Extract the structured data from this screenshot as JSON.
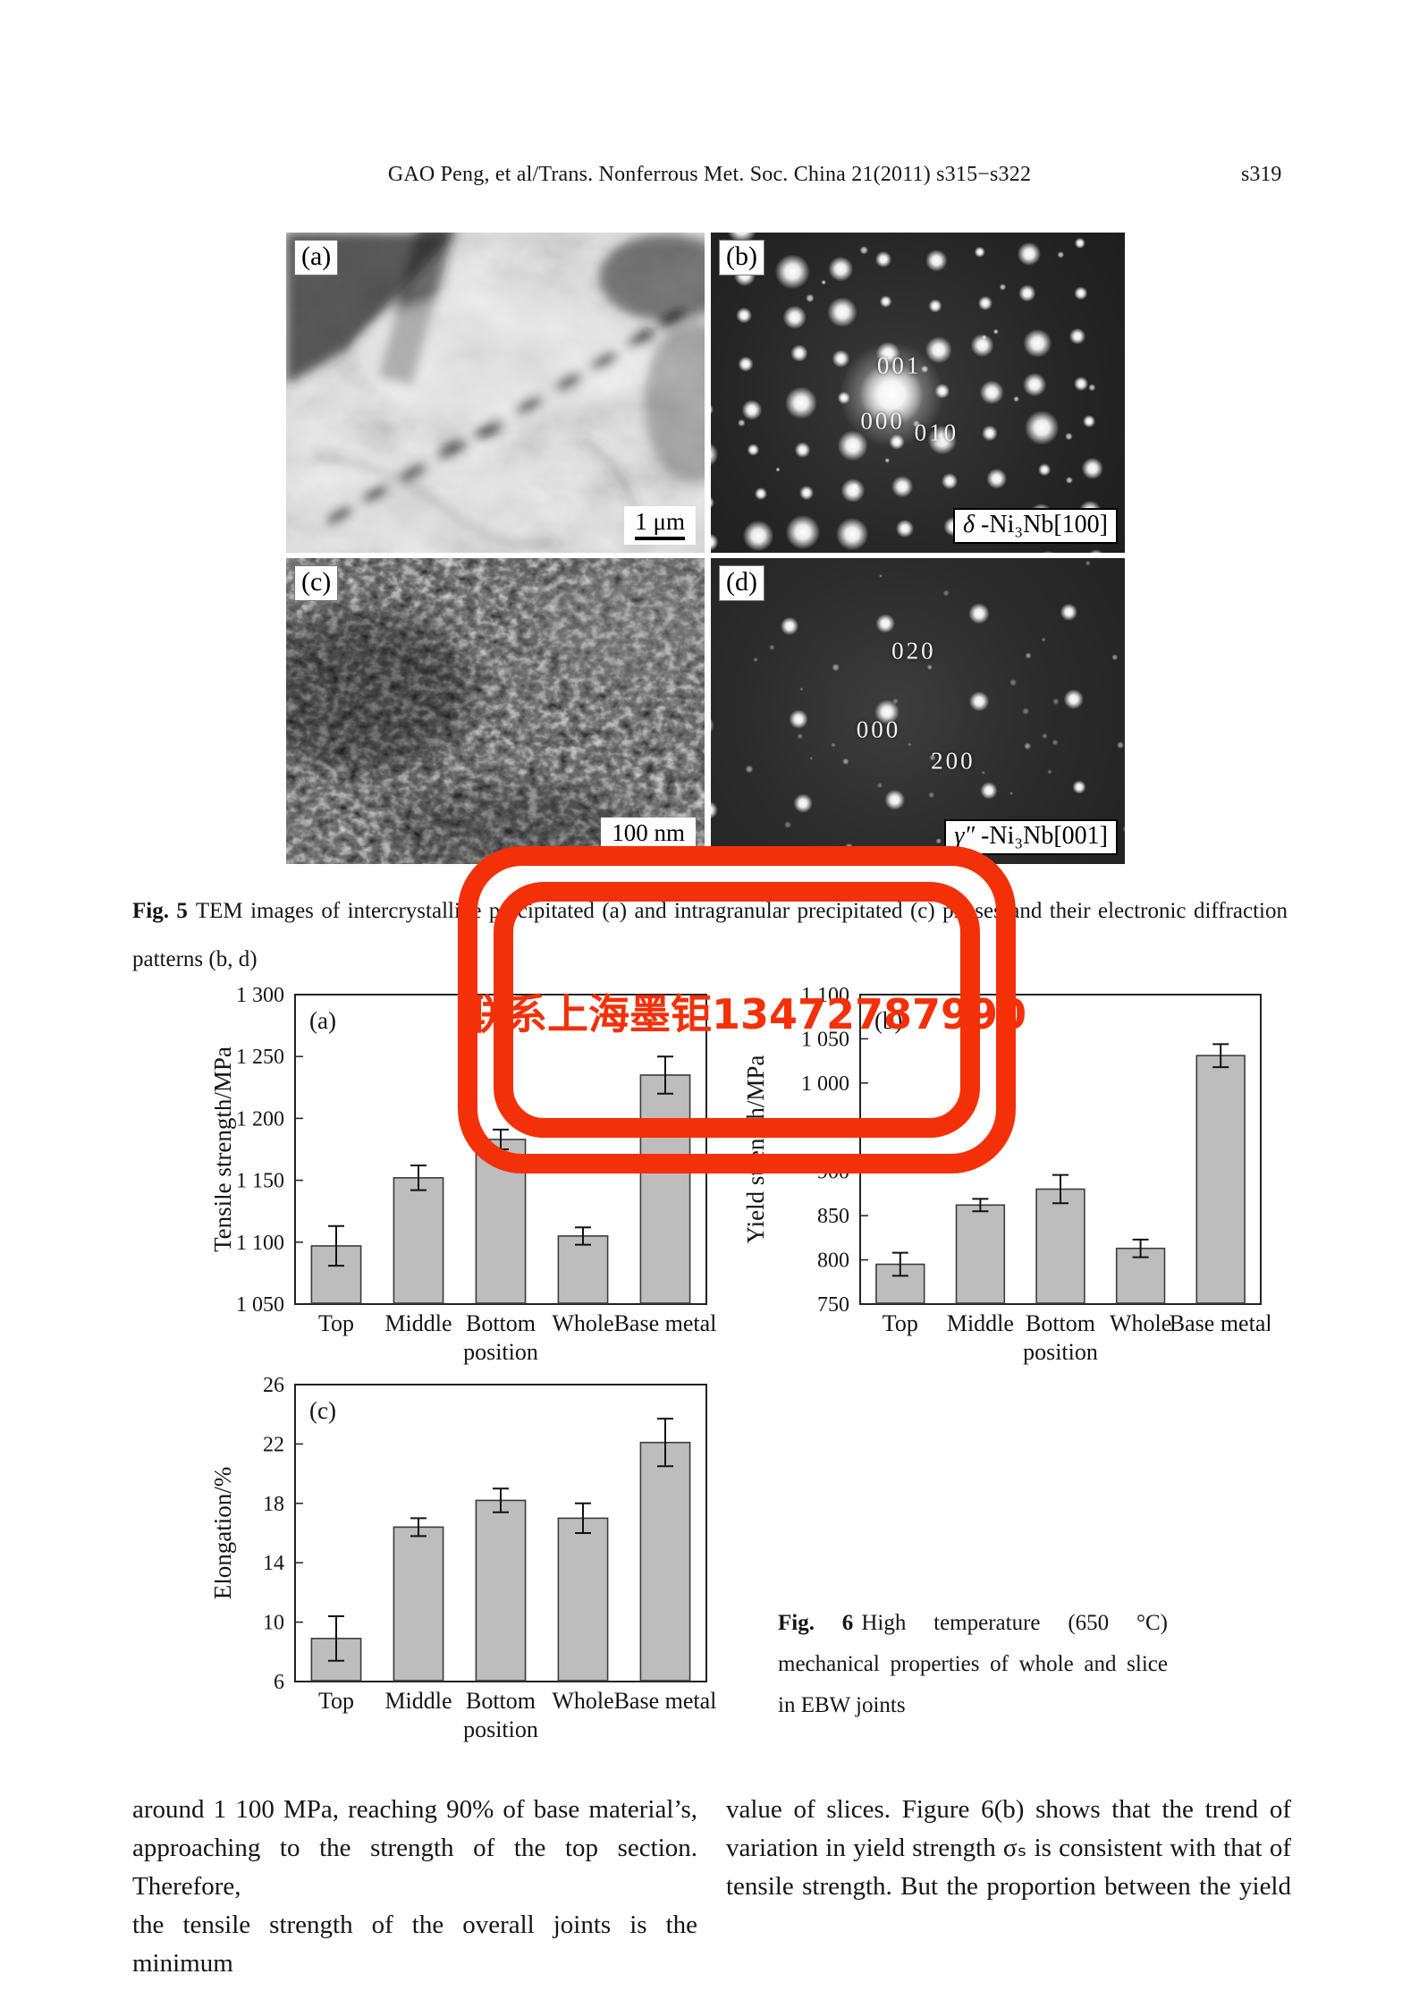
{
  "page": {
    "header": {
      "citation": "GAO Peng, et al/Trans. Nonferrous Met. Soc. China 21(2011) s315−s322",
      "page_number": "s319"
    }
  },
  "figure5": {
    "caption_prefix": "Fig. 5",
    "caption_line1": "TEM images of intercrystalline precipitated (a) and intragranular precipitated (c) phases and their electronic diffraction",
    "caption_line2": "patterns (b, d)",
    "panels": [
      {
        "label": "(a)",
        "scale_bar": "1 μm"
      },
      {
        "label": "(b)",
        "annotations": [
          "001",
          "000",
          "010"
        ],
        "phase_label": "δ -Ni₃Nb[100]"
      },
      {
        "label": "(c)",
        "scale_bar": "100 nm"
      },
      {
        "label": "(d)",
        "annotations": [
          "020",
          "000",
          "200"
        ],
        "phase_label": "γ″ -Ni₃Nb[001]"
      }
    ]
  },
  "watermark": {
    "text": "联系上海墨钜13472787990",
    "color": "#f43008"
  },
  "chart_data": [
    {
      "type": "bar",
      "panel_label": "(a)",
      "title": "",
      "xlabel": "",
      "ylabel": "Tensile strength/MPa",
      "ylim": [
        1050,
        1300
      ],
      "grid": false,
      "bar_color": "#bdbdbd",
      "ytick_values": [
        1050,
        1100,
        1150,
        1200,
        1250,
        1300
      ],
      "ytick_labels": [
        "1 050",
        "1 100",
        "1 150",
        "1 200",
        "1 250",
        "1 300"
      ],
      "categories": [
        "Top",
        "Middle",
        "Bottom",
        "Whole",
        "Base metal"
      ],
      "category_sublabels": [
        "",
        "",
        "position",
        "",
        ""
      ],
      "values": [
        1097,
        1152,
        1183,
        1105,
        1235
      ],
      "errors": [
        16,
        10,
        8,
        7,
        15
      ]
    },
    {
      "type": "bar",
      "panel_label": "(b)",
      "title": "",
      "xlabel": "",
      "ylabel": "Yield strength/MPa",
      "ylim": [
        750,
        1100
      ],
      "grid": false,
      "bar_color": "#bdbdbd",
      "ytick_values": [
        750,
        800,
        850,
        900,
        950,
        1000,
        1050,
        1100
      ],
      "ytick_labels": [
        "750",
        "800",
        "850",
        "900",
        "950",
        "1 000",
        "1 050",
        "1 100"
      ],
      "categories": [
        "Top",
        "Middle",
        "Bottom",
        "Whole",
        "Base metal"
      ],
      "category_sublabels": [
        "",
        "",
        "position",
        "",
        ""
      ],
      "values": [
        795,
        862,
        880,
        813,
        1031
      ],
      "errors": [
        13,
        7,
        16,
        10,
        13
      ]
    },
    {
      "type": "bar",
      "panel_label": "(c)",
      "title": "",
      "xlabel": "",
      "ylabel": "Elongation/%",
      "ylim": [
        6,
        26
      ],
      "grid": false,
      "bar_color": "#bdbdbd",
      "ytick_values": [
        6,
        10,
        14,
        18,
        22,
        26
      ],
      "ytick_labels": [
        "6",
        "10",
        "14",
        "18",
        "22",
        "26"
      ],
      "categories": [
        "Top",
        "Middle",
        "Bottom",
        "Whole",
        "Base metal"
      ],
      "category_sublabels": [
        "",
        "",
        "position",
        "",
        ""
      ],
      "values": [
        8.9,
        16.4,
        18.2,
        17.0,
        22.1
      ],
      "errors": [
        1.5,
        0.6,
        0.8,
        1.0,
        1.6
      ]
    }
  ],
  "figure6": {
    "prefix": "Fig. 6",
    "line1": "High temperature (650 °C)",
    "line2": "mechanical properties of whole and slice",
    "line3": "in EBW joints"
  },
  "body_text": {
    "left_lines": [
      "around 1 100 MPa, reaching 90% of base material’s,",
      "approaching to the strength of the top section. Therefore,",
      "the tensile strength of the overall joints is the minimum"
    ],
    "right_lines": [
      "value of slices. Figure 6(b) shows that the trend of",
      "variation in yield strength σₛ is consistent with that of",
      "tensile strength. But the proportion between the yield"
    ]
  }
}
